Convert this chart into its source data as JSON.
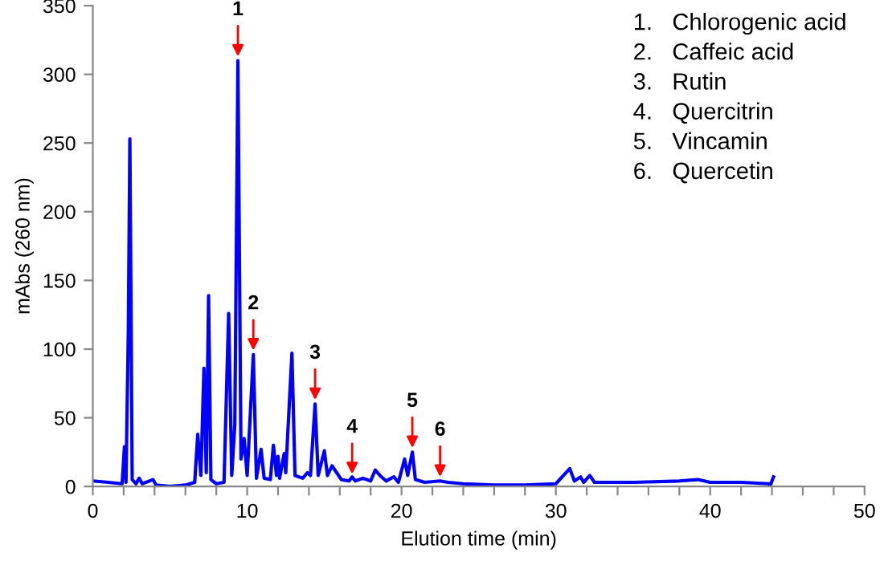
{
  "chart_data": {
    "type": "line",
    "xlabel": "Elution time (min)",
    "ylabel": "mAbs (260 nm)",
    "xlim": [
      0,
      50
    ],
    "ylim": [
      0,
      350
    ],
    "xticks": [
      0,
      {
        "value": 2,
        "label": null
      },
      {
        "value": 4,
        "label": null
      },
      {
        "value": 6,
        "label": null
      },
      {
        "value": 8,
        "label": null
      },
      10,
      {
        "value": 12,
        "label": null
      },
      {
        "value": 14,
        "label": null
      },
      {
        "value": 16,
        "label": null
      },
      {
        "value": 18,
        "label": null
      },
      20,
      {
        "value": 22,
        "label": null
      },
      {
        "value": 24,
        "label": null
      },
      {
        "value": 26,
        "label": null
      },
      {
        "value": 28,
        "label": null
      },
      30,
      {
        "value": 32,
        "label": null
      },
      {
        "value": 34,
        "label": null
      },
      {
        "value": 36,
        "label": null
      },
      {
        "value": 38,
        "label": null
      },
      40,
      {
        "value": 42,
        "label": null
      },
      {
        "value": 44,
        "label": null
      },
      {
        "value": 46,
        "label": null
      },
      {
        "value": 48,
        "label": null
      },
      50
    ],
    "yticks": [
      0,
      50,
      100,
      150,
      200,
      250,
      300,
      350
    ],
    "grid": false,
    "legend": false,
    "marker": "none",
    "line_style": "solid",
    "series": [
      {
        "color": "#0000ff",
        "x": [
          0,
          1,
          1.9,
          2.05,
          2.15,
          2.3,
          2.4,
          2.55,
          2.8,
          3.0,
          3.2,
          3.9,
          4.1,
          5,
          6,
          6.6,
          6.8,
          7.0,
          7.2,
          7.35,
          7.5,
          7.65,
          8,
          8.5,
          8.8,
          9.0,
          9.2,
          9.4,
          9.6,
          9.8,
          10.0,
          10.4,
          10.6,
          10.9,
          11.1,
          11.5,
          11.7,
          11.9,
          12.0,
          12.1,
          12.4,
          12.5,
          12.9,
          13.1,
          13.6,
          13.9,
          14.1,
          14.4,
          14.6,
          15.0,
          15.2,
          15.5,
          15.8,
          16.1,
          16.6,
          16.8,
          17.0,
          17.5,
          18.0,
          18.3,
          18.6,
          19.0,
          19.5,
          19.8,
          20.2,
          20.4,
          20.7,
          20.9,
          21.5,
          22.5,
          23,
          24,
          26,
          28,
          30,
          30.9,
          31.2,
          31.6,
          31.8,
          32.2,
          32.5,
          35,
          38,
          39.2,
          40,
          42,
          43.8,
          43.9,
          44.1
        ],
        "values": [
          4,
          3,
          2,
          29,
          3,
          114,
          253,
          5,
          2,
          6,
          2,
          5,
          1,
          0,
          1,
          3,
          38,
          8,
          86,
          10,
          139,
          5,
          2,
          3,
          126,
          8,
          45,
          310,
          20,
          35,
          8,
          96,
          6,
          27,
          6,
          5,
          30,
          8,
          22,
          6,
          24,
          10,
          97,
          8,
          6,
          10,
          8,
          60,
          8,
          26,
          8,
          15,
          10,
          5,
          4,
          7,
          4,
          6,
          4,
          12,
          8,
          4,
          7,
          3,
          20,
          8,
          25,
          5,
          3,
          4,
          3,
          2,
          1,
          1,
          2,
          13,
          4,
          7,
          3,
          8,
          3,
          3,
          4,
          5,
          3,
          3,
          2,
          1,
          7
        ]
      }
    ],
    "annotations": [
      {
        "text": "1",
        "x": 9.4,
        "y": 310
      },
      {
        "text": "2",
        "x": 10.4,
        "y": 96
      },
      {
        "text": "3",
        "x": 14.4,
        "y": 60
      },
      {
        "text": "4",
        "x": 16.8,
        "y": 6
      },
      {
        "text": "5",
        "x": 20.7,
        "y": 25
      },
      {
        "text": "6",
        "x": 22.5,
        "y": 4
      },
      "1.   Chlorogenic acid",
      "2.   Caffeic acid",
      "3.   Rutin",
      "4.   Quercitrin",
      "5.   Vincamin",
      "6.   Quercetin"
    ]
  }
}
